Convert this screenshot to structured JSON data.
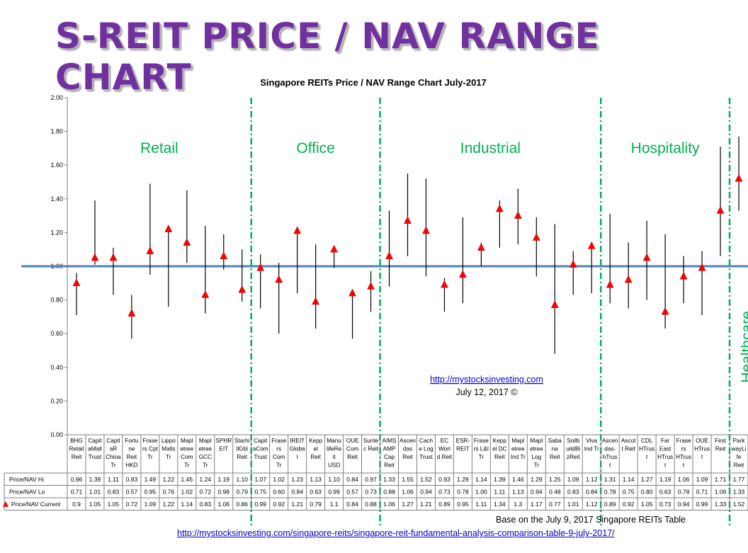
{
  "banner_title": "S-REIT PRICE / NAV RANGE CHART",
  "chart_data": {
    "type": "range",
    "title": "Singapore REITs Price / NAV Range Chart July-2017",
    "ylim": [
      0,
      2.0
    ],
    "yticks": [
      "0.00",
      "0.20",
      "0.40",
      "0.60",
      "0.80",
      "1.00",
      "1.20",
      "1.40",
      "1.60",
      "1.80",
      "2.00"
    ],
    "reference_line": 1.0,
    "grid": false,
    "sectors": [
      {
        "label": "Retail",
        "start": 0,
        "end": 9
      },
      {
        "label": "Office",
        "start": 10,
        "end": 16
      },
      {
        "label": "Industrial",
        "start": 17,
        "end": 28
      },
      {
        "label": "Hospitality",
        "start": 29,
        "end": 35
      },
      {
        "label": "Healthcare",
        "start": 36,
        "end": 37
      }
    ],
    "categories": [
      [
        "BHG",
        "Retail",
        "Reit"
      ],
      [
        "Capit",
        "aMall",
        "Trust"
      ],
      [
        "Capit",
        "aR",
        "China",
        "Tr"
      ],
      [
        "Fortu",
        "ne",
        "Reit",
        "HKD"
      ],
      [
        "Frase",
        "rs Cpt",
        "Tr"
      ],
      [
        "Lippo",
        "Malls",
        "Tr"
      ],
      [
        "Mapl",
        "etree",
        "Com",
        "Tr"
      ],
      [
        "Mapl",
        "etree",
        "GCC",
        "Tr"
      ],
      [
        "SPHR",
        "EIT"
      ],
      [
        "Starhi",
        "llGbl",
        "Reit"
      ],
      [
        "Capit",
        "aCom",
        "Trust"
      ],
      [
        "Frase",
        "rs",
        "Com",
        "Tr"
      ],
      [
        "IREIT",
        "Globa",
        "l"
      ],
      [
        "Kepp",
        "el",
        "Reit"
      ],
      [
        "Manu",
        "lifeRe",
        "it",
        "USD"
      ],
      [
        "OUE",
        "Com",
        "Reit"
      ],
      [
        "Sunte",
        "c Reit"
      ],
      [
        "AIMS",
        "AMP",
        "Cap",
        "Reit"
      ],
      [
        "Ascen",
        "das",
        "Reit"
      ],
      [
        "Cach",
        "e Log",
        "Trust"
      ],
      [
        "EC",
        "Worl",
        "d Reit"
      ],
      [
        "ESR-",
        "REIT"
      ],
      [
        "Frase",
        "rs L&I",
        "Tr"
      ],
      [
        "Kepp",
        "el DC",
        "Reit"
      ],
      [
        "Mapl",
        "etree",
        "Ind Tr"
      ],
      [
        "Mapl",
        "etree",
        "Log",
        "Tr"
      ],
      [
        "Saba",
        "na",
        "Reit"
      ],
      [
        "Soilb",
        "uildBi",
        "zReit"
      ],
      [
        "Viva",
        "Ind Tr"
      ],
      [
        "Ascen",
        "das-",
        "hTrus",
        "t"
      ],
      [
        "Ascot",
        "t Reit"
      ],
      [
        "CDL",
        "HTrus",
        "t"
      ],
      [
        "Far",
        "East",
        "HTrus",
        "t"
      ],
      [
        "Frase",
        "rs",
        "HTrus",
        "t"
      ],
      [
        "OUE",
        "HTrus",
        "t"
      ],
      [
        "First",
        "Reit"
      ],
      [
        "Park",
        "wayLi",
        "fe",
        "Reit"
      ]
    ],
    "series": [
      {
        "name": "Price/NAV Hi",
        "values": [
          "0.96",
          "1.39",
          "1.11",
          "0.83",
          "1.49",
          "1.22",
          "1.45",
          "1.24",
          "1.19",
          "1.10",
          "1.07",
          "1.02",
          "1.23",
          "1.13",
          "1.10",
          "0.84",
          "0.97",
          "1.33",
          "1.55",
          "1.52",
          "0.93",
          "1.29",
          "1.14",
          "1.39",
          "1.46",
          "1.29",
          "1.25",
          "1.09",
          "1.12",
          "1.31",
          "1.14",
          "1.27",
          "1.19",
          "1.06",
          "1.09",
          "1.71",
          "1.77"
        ]
      },
      {
        "name": "Price/NAV Lo",
        "values": [
          "0.71",
          "1.01",
          "0.83",
          "0.57",
          "0.95",
          "0.76",
          "1.02",
          "0.72",
          "0.98",
          "0.79",
          "0.75",
          "0.60",
          "0.84",
          "0.63",
          "0.99",
          "0.57",
          "0.73",
          "0.88",
          "1.06",
          "0.94",
          "0.73",
          "0.78",
          "1.00",
          "1.11",
          "1.13",
          "0.94",
          "0.48",
          "0.83",
          "0.84",
          "0.78",
          "0.75",
          "0.80",
          "0.63",
          "0.78",
          "0.71",
          "1.06",
          "1.33"
        ]
      },
      {
        "name": "Price/NAV Current",
        "values": [
          "0.9",
          "1.05",
          "1.05",
          "0.72",
          "1.09",
          "1.22",
          "1.14",
          "0.83",
          "1.06",
          "0.86",
          "0.99",
          "0.92",
          "1.21",
          "0.79",
          "1.1",
          "0.84",
          "0.88",
          "1.06",
          "1.27",
          "1.21",
          "0.89",
          "0.95",
          "1.11",
          "1.34",
          "1.3",
          "1.17",
          "0.77",
          "1.01",
          "1.12",
          "0.89",
          "0.92",
          "1.05",
          "0.73",
          "0.94",
          "0.99",
          "1.33",
          "1.52"
        ]
      }
    ],
    "annotation_link": "http://mystocksinvesting.com",
    "annotation_date": "July 12, 2017 ©"
  },
  "footer": {
    "note": "Base on the July 9, 2017 Singapore REITs Table",
    "link": "http://mystocksinvesting.com/singapore-reits/singapore-reit-fundamental-analysis-comparison-table-9-july-2017/"
  },
  "colors": {
    "banner": "#7030a0",
    "marker": "#ff0000",
    "reference_line": "#4f81bd",
    "sector_divider": "#00b050",
    "range_line": "#000000"
  }
}
